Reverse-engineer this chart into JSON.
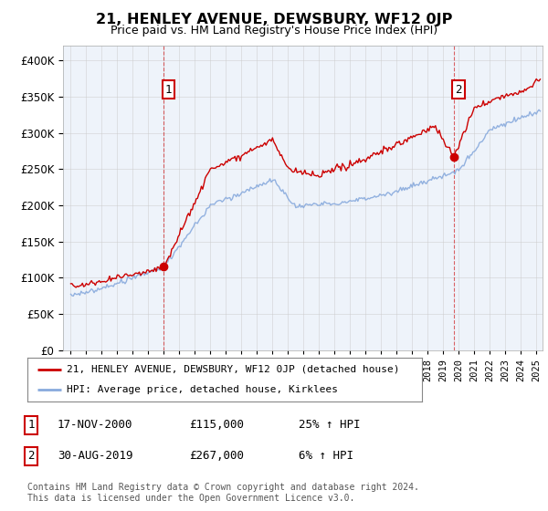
{
  "title": "21, HENLEY AVENUE, DEWSBURY, WF12 0JP",
  "subtitle": "Price paid vs. HM Land Registry's House Price Index (HPI)",
  "ylim": [
    0,
    420000
  ],
  "xlim_start": 1994.5,
  "xlim_end": 2025.4,
  "red_line_color": "#cc0000",
  "blue_line_color": "#88aadd",
  "dashed_color": "#cc0000",
  "marker_color": "#cc0000",
  "chart_bg": "#eef3fa",
  "transaction1": {
    "date_x": 2001.0,
    "price": 115000,
    "label": "1"
  },
  "transaction2": {
    "date_x": 2019.67,
    "price": 267000,
    "label": "2"
  },
  "legend_entry1": "21, HENLEY AVENUE, DEWSBURY, WF12 0JP (detached house)",
  "legend_entry2": "HPI: Average price, detached house, Kirklees",
  "table_row1": [
    "1",
    "17-NOV-2000",
    "£115,000",
    "25% ↑ HPI"
  ],
  "table_row2": [
    "2",
    "30-AUG-2019",
    "£267,000",
    "6% ↑ HPI"
  ],
  "footer": "Contains HM Land Registry data © Crown copyright and database right 2024.\nThis data is licensed under the Open Government Licence v3.0.",
  "background_color": "#ffffff",
  "grid_color": "#cccccc"
}
